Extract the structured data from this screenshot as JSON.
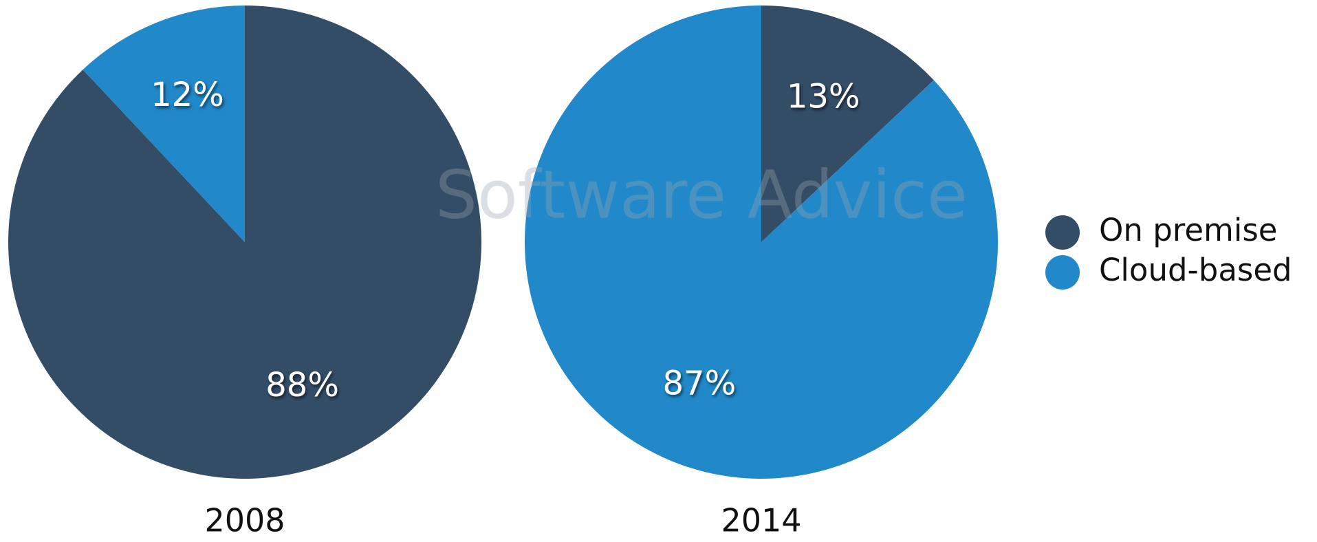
{
  "chart_data": [
    {
      "type": "pie",
      "title": "2008",
      "categories": [
        "On premise",
        "Cloud-based"
      ],
      "values": [
        88,
        12
      ],
      "value_labels": [
        "88%",
        "12%"
      ],
      "colors": [
        "#344d67",
        "#2189c9"
      ]
    },
    {
      "type": "pie",
      "title": "2014",
      "categories": [
        "On premise",
        "Cloud-based"
      ],
      "values": [
        13,
        87
      ],
      "value_labels": [
        "13%",
        "87%"
      ],
      "colors": [
        "#344d67",
        "#2189c9"
      ]
    }
  ],
  "watermark": "Software Advice"
}
